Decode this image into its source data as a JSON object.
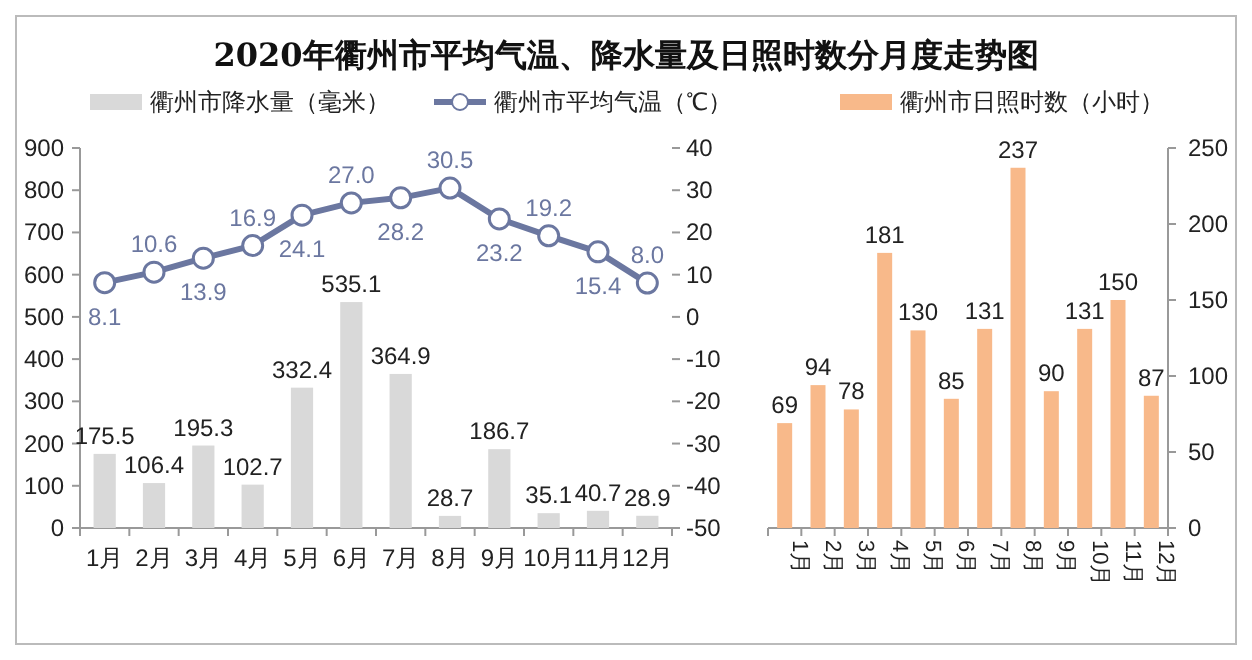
{
  "chart_data": [
    {
      "type": "bar",
      "title": "2020年衢州市平均气温、降水量及日照时数分月度走势图",
      "categories": [
        "1月",
        "2月",
        "3月",
        "4月",
        "5月",
        "6月",
        "7月",
        "8月",
        "9月",
        "10月",
        "11月",
        "12月"
      ],
      "series": [
        {
          "name": "衢州市降水量（毫米）",
          "color": "#d9d9d9",
          "values": [
            175.5,
            106.4,
            195.3,
            102.7,
            332.4,
            535.1,
            364.9,
            28.7,
            186.7,
            35.1,
            40.7,
            28.9
          ]
        },
        {
          "name": "衢州市平均气温（℃）",
          "type": "line",
          "axis": "y2",
          "color": "#6b77a0",
          "marker": "circle",
          "values": [
            8.1,
            10.6,
            13.9,
            16.9,
            24.1,
            27.0,
            28.2,
            30.5,
            23.2,
            19.2,
            15.4,
            8.0
          ],
          "value_labels": [
            "8.1",
            "10.6",
            "13.9",
            "16.9",
            "24.1",
            "27.0",
            "28.2",
            "30.5",
            "23.2",
            "19.2",
            "15.4",
            "8.0"
          ]
        }
      ],
      "ylim": [
        0,
        900
      ],
      "yticks": [
        0,
        100,
        200,
        300,
        400,
        500,
        600,
        700,
        800,
        900
      ],
      "y2lim": [
        -50,
        40
      ],
      "y2ticks": [
        -50,
        -40,
        -30,
        -20,
        -10,
        0,
        10,
        20,
        30,
        40
      ],
      "data_labels": true,
      "legend": "top"
    },
    {
      "type": "bar",
      "categories": [
        "1月",
        "2月",
        "3月",
        "4月",
        "5月",
        "6月",
        "7月",
        "8月",
        "9月",
        "10月",
        "11月",
        "12月"
      ],
      "series": [
        {
          "name": "衢州市日照时数（小时）",
          "axis": "y2",
          "color": "#f8b98a",
          "values": [
            69,
            94,
            78,
            181,
            130,
            85,
            131,
            237,
            90,
            131,
            150,
            87
          ]
        }
      ],
      "y2lim": [
        0,
        250
      ],
      "y2ticks": [
        0,
        50,
        100,
        150,
        200,
        250
      ],
      "data_labels": true,
      "legend": "top"
    }
  ]
}
